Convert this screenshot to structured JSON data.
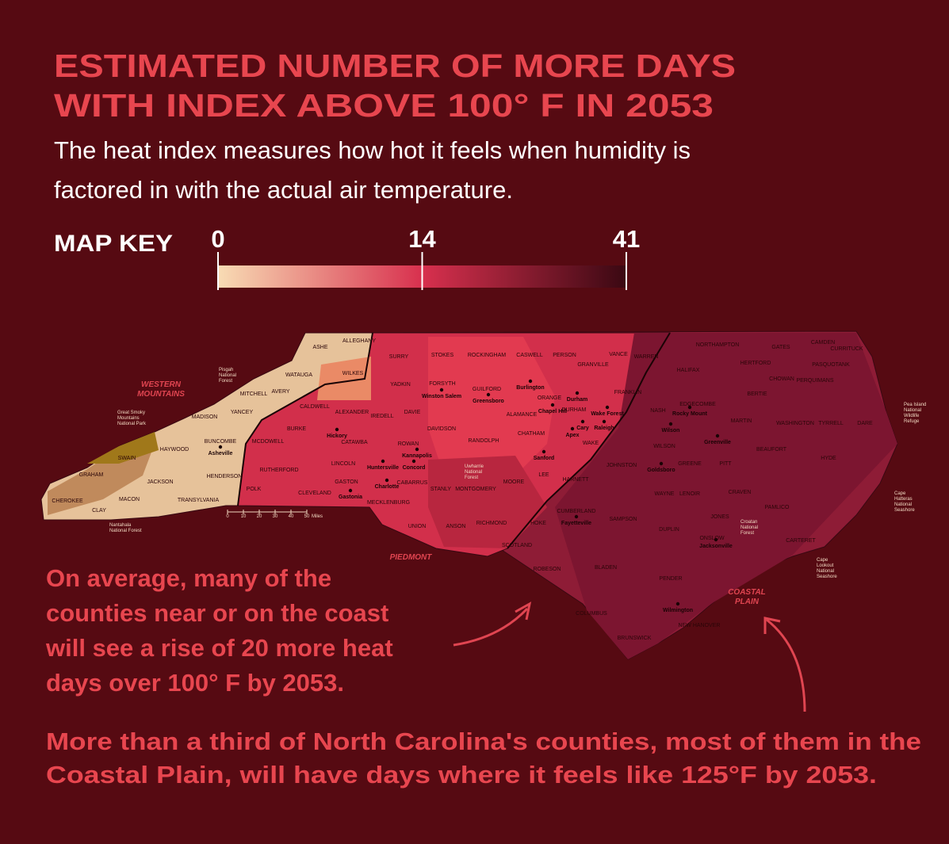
{
  "title_lines": [
    "ESTIMATED NUMBER OF MORE DAYS",
    "WITH INDEX ABOVE 100° F IN 2053"
  ],
  "subtitle_lines": [
    "The heat index measures how hot it feels when humidity is",
    "factored in with the actual air temperature."
  ],
  "map_key": {
    "label": "MAP KEY",
    "ticks": [
      0,
      14,
      41
    ],
    "colors": [
      "#f8dcb4",
      "#d8304e",
      "#3a0812"
    ]
  },
  "regions": [
    [
      "WESTERN",
      "MOUNTAINS"
    ],
    [
      "PIEDMONT"
    ],
    [
      "COASTAL",
      "PLAIN"
    ]
  ],
  "counties": [
    "ASHE",
    "ALLEGHANY",
    "SURRY",
    "STOKES",
    "ROCKINGHAM",
    "CASWELL",
    "PERSON",
    "GRANVILLE",
    "VANCE",
    "WARREN",
    "NORTHAMPTON",
    "GATES",
    "HERTFORD",
    "CURRITUCK",
    "CAMDEN",
    "PASQUOTANK",
    "CHOWAN",
    "PERQUIMANS",
    "BERTIE",
    "HALIFAX",
    "WATAUGA",
    "WILKES",
    "YADKIN",
    "FORSYTH",
    "GUILFORD",
    "ORANGE",
    "DURHAM",
    "FRANKLIN",
    "NASH",
    "EDGECOMBE",
    "MARTIN",
    "WASHINGTON",
    "TYRRELL",
    "DARE",
    "MITCHELL",
    "AVERY",
    "YANCEY",
    "MADISON",
    "CALDWELL",
    "ALEXANDER",
    "IREDELL",
    "DAVIE",
    "DAVIDSON",
    "RANDOLPH",
    "ALAMANCE",
    "CHATHAM",
    "WAKE",
    "JOHNSTON",
    "WILSON",
    "GREENE",
    "PITT",
    "BEAUFORT",
    "HYDE",
    "BUNCOMBE",
    "HAYWOOD",
    "SWAIN",
    "BURKE",
    "MCDOWELL",
    "CATAWBA",
    "ROWAN",
    "LINCOLN",
    "CABARRUS",
    "STANLY",
    "MONTGOMERY",
    "MOORE",
    "LEE",
    "HARNETT",
    "WAYNE",
    "LENOIR",
    "CRAVEN",
    "PAMLICO",
    "GRAHAM",
    "JACKSON",
    "HENDERSON",
    "TRANSYLVANIA",
    "RUTHERFORD",
    "POLK",
    "CLEVELAND",
    "GASTON",
    "MECKLENBURG",
    "CHEROKEE",
    "CLAY",
    "MACON",
    "UNION",
    "ANSON",
    "RICHMOND",
    "HOKE",
    "CUMBERLAND",
    "SAMPSON",
    "DUPLIN",
    "JONES",
    "ONSLOW",
    "CARTERET",
    "SCOTLAND",
    "ROBESON",
    "BLADEN",
    "PENDER",
    "COLUMBUS",
    "BRUNSWICK",
    "NEW HANOVER"
  ],
  "cities": [
    "Asheville",
    "Hickory",
    "Winston Salem",
    "Greensboro",
    "Burlington",
    "Durham",
    "Chapel Hill",
    "Wake Forest",
    "Cary",
    "Raleigh",
    "Apex",
    "Sanford",
    "Kannapolis",
    "Concord",
    "Huntersville",
    "Charlotte",
    "Gastonia",
    "Fayetteville",
    "Rocky Mount",
    "Wilson",
    "Greenville",
    "Goldsboro",
    "Jacksonville",
    "Wilmington"
  ],
  "landmarks": [
    [
      "Great Smoky",
      "Mountains",
      "National Park"
    ],
    [
      "Pisgah",
      "National",
      "Forest"
    ],
    [
      "Nantahala",
      "National Forest"
    ],
    [
      "Uwharrie",
      "National",
      "Forest"
    ],
    [
      "Croatan",
      "National",
      "Forest"
    ],
    [
      "Pea Island",
      "National",
      "Wildlife",
      "Refuge"
    ],
    [
      "Cape",
      "Hatteras",
      "National",
      "Seashore"
    ],
    [
      "Cape",
      "Lookout",
      "National",
      "Seashore"
    ]
  ],
  "scale_bar": {
    "ticks": [
      0,
      10,
      20,
      30,
      40,
      50
    ],
    "unit": "Miles"
  },
  "annotations": [
    [
      "On average, many of the",
      "counties near or on the coast",
      "will see a rise of 20 more heat",
      "days over 100° F by 2053."
    ],
    [
      "More than a third of North Carolina's counties, most of them in the",
      "Coastal Plain, will have days where it feels like 125°F by 2053."
    ]
  ]
}
